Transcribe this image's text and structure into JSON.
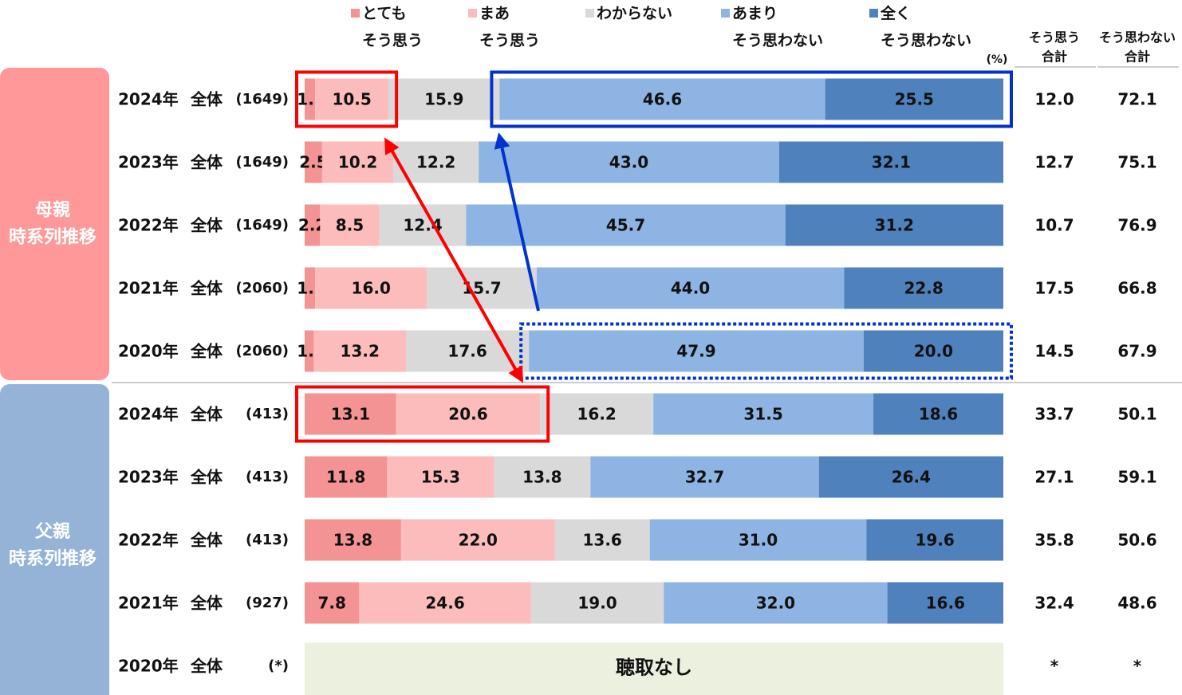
{
  "chart_data": {
    "type": "bar",
    "orientation": "horizontal-stacked-100",
    "unit_label": "(%)",
    "colors": {
      "very_agree": "#f49393",
      "somewhat_agree": "#fcbcbc",
      "dont_know": "#d9d9d9",
      "not_really": "#8eb4e3",
      "not_at_all": "#4f81bd",
      "group_mother": "#ff9999",
      "group_father": "#95b3d7",
      "no_data_fill": "#ebf1de",
      "highlight_red": "#ff0000",
      "highlight_blue": "#0033cc"
    },
    "legend": [
      {
        "key": "very_agree",
        "line1": "とても",
        "line2": "そう思う"
      },
      {
        "key": "somewhat_agree",
        "line1": "まあ",
        "line2": "そう思う"
      },
      {
        "key": "dont_know",
        "line1": "わからない",
        "line2": ""
      },
      {
        "key": "not_really",
        "line1": "あまり",
        "line2": "そう思わない"
      },
      {
        "key": "not_at_all",
        "line1": "全く",
        "line2": "そう思わない"
      }
    ],
    "summary_headers": [
      {
        "line1": "そう思う",
        "line2": "合計"
      },
      {
        "line1": "そう思わない",
        "line2": "合計"
      }
    ],
    "groups": [
      {
        "name_line1": "母親",
        "name_line2": "時系列推移"
      },
      {
        "name_line1": "父親",
        "name_line2": "時系列推移"
      }
    ],
    "rows": [
      {
        "group": 0,
        "year": "2024年",
        "segment": "全体",
        "n": "(1649)",
        "values": [
          1.5,
          10.5,
          15.9,
          46.6,
          25.5
        ],
        "agree_total": "12.0",
        "disagree_total": "72.1"
      },
      {
        "group": 0,
        "year": "2023年",
        "segment": "全体",
        "n": "(1649)",
        "values": [
          2.5,
          10.2,
          12.2,
          43.0,
          32.1
        ],
        "agree_total": "12.7",
        "disagree_total": "75.1"
      },
      {
        "group": 0,
        "year": "2022年",
        "segment": "全体",
        "n": "(1649)",
        "values": [
          2.2,
          8.5,
          12.4,
          45.7,
          31.2
        ],
        "agree_total": "10.7",
        "disagree_total": "76.9"
      },
      {
        "group": 0,
        "year": "2021年",
        "segment": "全体",
        "n": "(2060)",
        "values": [
          1.5,
          16.0,
          15.7,
          44.0,
          22.8
        ],
        "agree_total": "17.5",
        "disagree_total": "66.8"
      },
      {
        "group": 0,
        "year": "2020年",
        "segment": "全体",
        "n": "(2060)",
        "values": [
          1.3,
          13.2,
          17.6,
          47.9,
          20.0
        ],
        "agree_total": "14.5",
        "disagree_total": "67.9"
      },
      {
        "group": 1,
        "year": "2024年",
        "segment": "全体",
        "n": "(413)",
        "values": [
          13.1,
          20.6,
          16.2,
          31.5,
          18.6
        ],
        "agree_total": "33.7",
        "disagree_total": "50.1"
      },
      {
        "group": 1,
        "year": "2023年",
        "segment": "全体",
        "n": "(413)",
        "values": [
          11.8,
          15.3,
          13.8,
          32.7,
          26.4
        ],
        "agree_total": "27.1",
        "disagree_total": "59.1"
      },
      {
        "group": 1,
        "year": "2022年",
        "segment": "全体",
        "n": "(413)",
        "values": [
          13.8,
          22.0,
          13.6,
          31.0,
          19.6
        ],
        "agree_total": "35.8",
        "disagree_total": "50.6"
      },
      {
        "group": 1,
        "year": "2021年",
        "segment": "全体",
        "n": "(927)",
        "values": [
          7.8,
          24.6,
          19.0,
          32.0,
          16.6
        ],
        "agree_total": "32.4",
        "disagree_total": "48.6"
      },
      {
        "group": 1,
        "year": "2020年",
        "segment": "全体",
        "n": "(*)",
        "values": null,
        "no_data_label": "聴取なし",
        "agree_total": "*",
        "disagree_total": "*"
      }
    ],
    "highlights": [
      {
        "type": "box",
        "color": "highlight_red",
        "row": 0,
        "from_segment": 0,
        "to_segment": 1,
        "style": "solid"
      },
      {
        "type": "box",
        "color": "highlight_blue",
        "row": 0,
        "from_segment": 3,
        "to_segment": 4,
        "style": "solid"
      },
      {
        "type": "box",
        "color": "highlight_red",
        "row": 5,
        "from_segment": 0,
        "to_segment": 1,
        "style": "solid"
      },
      {
        "type": "box",
        "color": "highlight_blue",
        "row": 4,
        "from_segment": 3,
        "to_segment": 4,
        "style": "dotted"
      },
      {
        "type": "arrow",
        "color": "highlight_red",
        "between": [
          0,
          5
        ],
        "double_headed": true
      },
      {
        "type": "arrow",
        "color": "highlight_blue",
        "from_row": 4,
        "to_row": 0,
        "double_headed": false
      }
    ],
    "xlim": [
      0,
      100
    ]
  }
}
